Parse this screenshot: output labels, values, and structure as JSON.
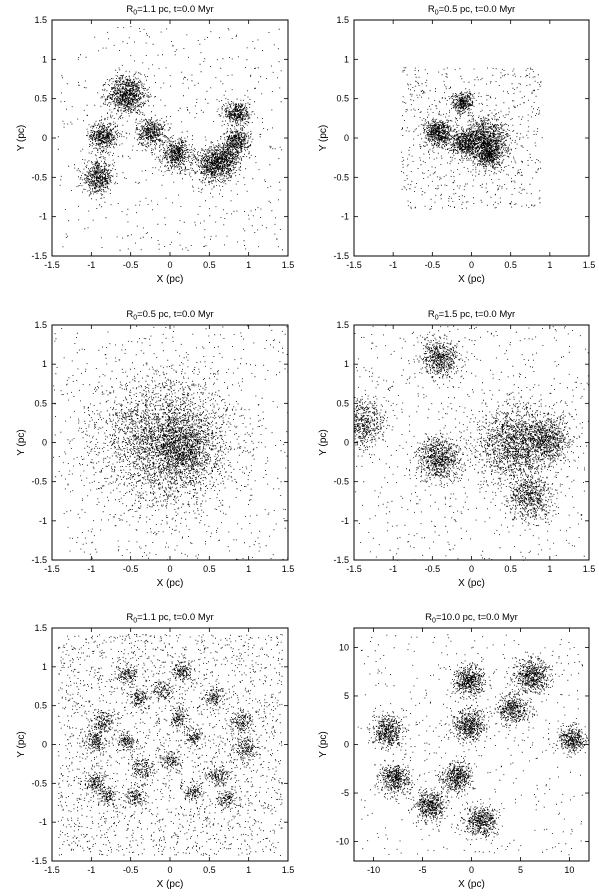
{
  "chart_data": [
    {
      "type": "scatter",
      "title_main": "R",
      "title_sub": "0",
      "title_rest": "=1.1 pc, t=0.0 Myr",
      "xlabel": "X (pc)",
      "ylabel": "Y (pc)",
      "xlim": [
        -1.5,
        1.5
      ],
      "ylim": [
        -1.5,
        1.5
      ],
      "xticks": [
        -1.5,
        -1,
        -0.5,
        0,
        0.5,
        1,
        1.5
      ],
      "xtick_labels": [
        "-1.5",
        "-1",
        "-0.5",
        "0",
        "0.5",
        "1",
        "1.5"
      ],
      "yticks": [
        -1.5,
        -1,
        -0.5,
        0,
        0.5,
        1,
        1.5
      ],
      "ytick_labels": [
        "-1.5",
        "-1",
        "-0.5",
        "0",
        "0.5",
        "1",
        "1.5"
      ],
      "grid": false,
      "marker_color": "#000000",
      "field_stars": 500,
      "field_spread": 0.95,
      "clumps": [
        {
          "x": -0.55,
          "y": 0.55,
          "r": 0.12,
          "n": 900
        },
        {
          "x": -0.85,
          "y": 0.03,
          "r": 0.09,
          "n": 500
        },
        {
          "x": -0.25,
          "y": 0.08,
          "r": 0.09,
          "n": 450
        },
        {
          "x": 0.08,
          "y": -0.2,
          "r": 0.1,
          "n": 550
        },
        {
          "x": -0.92,
          "y": -0.5,
          "r": 0.1,
          "n": 550
        },
        {
          "x": 0.55,
          "y": -0.35,
          "r": 0.11,
          "n": 650
        },
        {
          "x": 0.7,
          "y": -0.25,
          "r": 0.1,
          "n": 500
        },
        {
          "x": 0.85,
          "y": -0.03,
          "r": 0.08,
          "n": 400
        },
        {
          "x": 0.85,
          "y": 0.32,
          "r": 0.08,
          "n": 400
        }
      ]
    },
    {
      "type": "scatter",
      "title_main": "R",
      "title_sub": "0",
      "title_rest": "=0.5 pc, t=0.0 Myr",
      "xlabel": "X (pc)",
      "ylabel": "Y (pc)",
      "xlim": [
        -1.5,
        1.5
      ],
      "ylim": [
        -1.5,
        1.5
      ],
      "xticks": [
        -1.5,
        -1,
        -0.5,
        0,
        0.5,
        1,
        1.5
      ],
      "xtick_labels": [
        "-1.5",
        "-1",
        "-0.5",
        "0",
        "0.5",
        "1",
        "1.5"
      ],
      "yticks": [
        -1.5,
        -1,
        -0.5,
        0,
        0.5,
        1,
        1.5
      ],
      "ytick_labels": [
        "-1.5",
        "-1",
        "-0.5",
        "0",
        "0.5",
        "1",
        "1.5"
      ],
      "grid": false,
      "marker_color": "#000000",
      "field_stars": 700,
      "field_spread": 0.6,
      "clumps": [
        {
          "x": -0.12,
          "y": 0.45,
          "r": 0.07,
          "n": 350
        },
        {
          "x": -0.42,
          "y": 0.07,
          "r": 0.09,
          "n": 600
        },
        {
          "x": -0.1,
          "y": -0.07,
          "r": 0.08,
          "n": 450
        },
        {
          "x": 0.18,
          "y": -0.02,
          "r": 0.14,
          "n": 1100
        },
        {
          "x": 0.22,
          "y": -0.22,
          "r": 0.08,
          "n": 400
        }
      ]
    },
    {
      "type": "scatter",
      "title_main": "R",
      "title_sub": "0",
      "title_rest": "=0.5 pc, t=0.0 Myr",
      "xlabel": "X (pc)",
      "ylabel": "Y (pc)",
      "xlim": [
        -1.5,
        1.5
      ],
      "ylim": [
        -1.5,
        1.5
      ],
      "xticks": [
        -1.5,
        -1,
        -0.5,
        0,
        0.5,
        1,
        1.5
      ],
      "xtick_labels": [
        "-1.5",
        "-1",
        "-0.5",
        "0",
        "0.5",
        "1",
        "1.5"
      ],
      "yticks": [
        -1.5,
        -1,
        -0.5,
        0,
        0.5,
        1,
        1.5
      ],
      "ytick_labels": [
        "-1.5",
        "-1",
        "-0.5",
        "0",
        "0.5",
        "1",
        "1.5"
      ],
      "grid": false,
      "marker_color": "#000000",
      "field_stars": 600,
      "field_spread": 1.0,
      "clumps": [
        {
          "x": -0.05,
          "y": 0.02,
          "r": 0.42,
          "n": 3200
        },
        {
          "x": 0.15,
          "y": -0.08,
          "r": 0.2,
          "n": 900
        }
      ]
    },
    {
      "type": "scatter",
      "title_main": "R",
      "title_sub": "0",
      "title_rest": "=1.5 pc, t=0.0 Myr",
      "xlabel": "X (pc)",
      "ylabel": "Y (pc)",
      "xlim": [
        -1.5,
        1.5
      ],
      "ylim": [
        -1.5,
        1.5
      ],
      "xticks": [
        -1.5,
        -1,
        -0.5,
        0,
        0.5,
        1,
        1.5
      ],
      "xtick_labels": [
        "-1.5",
        "-1",
        "-0.5",
        "0",
        "0.5",
        "1",
        "1.5"
      ],
      "yticks": [
        -1.5,
        -1,
        -0.5,
        0,
        0.5,
        1,
        1.5
      ],
      "ytick_labels": [
        "-1.5",
        "-1",
        "-0.5",
        "0",
        "0.5",
        "1",
        "1.5"
      ],
      "grid": false,
      "marker_color": "#000000",
      "field_stars": 700,
      "field_spread": 1.0,
      "clumps": [
        {
          "x": -0.4,
          "y": 1.08,
          "r": 0.12,
          "n": 600
        },
        {
          "x": -1.4,
          "y": 0.25,
          "r": 0.15,
          "n": 600
        },
        {
          "x": -0.42,
          "y": -0.2,
          "r": 0.14,
          "n": 800
        },
        {
          "x": 0.55,
          "y": -0.02,
          "r": 0.25,
          "n": 1600
        },
        {
          "x": 0.95,
          "y": 0.05,
          "r": 0.15,
          "n": 700
        },
        {
          "x": 0.75,
          "y": -0.72,
          "r": 0.14,
          "n": 600
        }
      ]
    },
    {
      "type": "scatter",
      "title_main": "R",
      "title_sub": "0",
      "title_rest": "=1.1 pc, t=0.0 Myr",
      "xlabel": "X (pc)",
      "ylabel": "Y (pc)",
      "xlim": [
        -1.5,
        1.5
      ],
      "ylim": [
        -1.5,
        1.5
      ],
      "xticks": [
        -1.5,
        -1,
        -0.5,
        0,
        0.5,
        1,
        1.5
      ],
      "xtick_labels": [
        "-1.5",
        "-1",
        "-0.5",
        "0",
        "0.5",
        "1",
        "1.5"
      ],
      "yticks": [
        -1.5,
        -1,
        -0.5,
        0,
        0.5,
        1,
        1.5
      ],
      "ytick_labels": [
        "-1.5",
        "-1",
        "-0.5",
        "0",
        "0.5",
        "1",
        "1.5"
      ],
      "grid": false,
      "marker_color": "#000000",
      "field_stars": 2400,
      "field_spread": 0.95,
      "clumps": [
        {
          "x": 0.15,
          "y": 0.95,
          "r": 0.07,
          "n": 160
        },
        {
          "x": -0.55,
          "y": 0.9,
          "r": 0.07,
          "n": 160
        },
        {
          "x": -0.4,
          "y": 0.6,
          "r": 0.06,
          "n": 130
        },
        {
          "x": -0.1,
          "y": 0.7,
          "r": 0.06,
          "n": 130
        },
        {
          "x": 0.55,
          "y": 0.6,
          "r": 0.06,
          "n": 130
        },
        {
          "x": -0.85,
          "y": 0.3,
          "r": 0.07,
          "n": 160
        },
        {
          "x": 0.1,
          "y": 0.35,
          "r": 0.06,
          "n": 130
        },
        {
          "x": 0.9,
          "y": 0.3,
          "r": 0.07,
          "n": 160
        },
        {
          "x": -0.95,
          "y": 0.05,
          "r": 0.08,
          "n": 200
        },
        {
          "x": -0.55,
          "y": 0.05,
          "r": 0.06,
          "n": 130
        },
        {
          "x": 0.3,
          "y": 0.1,
          "r": 0.06,
          "n": 120
        },
        {
          "x": 0.95,
          "y": -0.05,
          "r": 0.08,
          "n": 200
        },
        {
          "x": -0.35,
          "y": -0.3,
          "r": 0.07,
          "n": 160
        },
        {
          "x": 0.0,
          "y": -0.2,
          "r": 0.06,
          "n": 130
        },
        {
          "x": 0.6,
          "y": -0.4,
          "r": 0.07,
          "n": 160
        },
        {
          "x": -0.95,
          "y": -0.5,
          "r": 0.07,
          "n": 160
        },
        {
          "x": -0.8,
          "y": -0.65,
          "r": 0.06,
          "n": 130
        },
        {
          "x": -0.45,
          "y": -0.65,
          "r": 0.06,
          "n": 130
        },
        {
          "x": 0.3,
          "y": -0.6,
          "r": 0.06,
          "n": 120
        },
        {
          "x": 0.7,
          "y": -0.7,
          "r": 0.06,
          "n": 120
        }
      ]
    },
    {
      "type": "scatter",
      "title_main": "R",
      "title_sub": "0",
      "title_rest": "=10.0 pc, t=0.0 Myr",
      "xlabel": "X (pc)",
      "ylabel": "Y (pc)",
      "xlim": [
        -12,
        12
      ],
      "ylim": [
        -12,
        12
      ],
      "xticks": [
        -10,
        -5,
        0,
        5,
        10
      ],
      "xtick_labels": [
        "-10",
        "-5",
        "0",
        "5",
        "10"
      ],
      "yticks": [
        -10,
        -5,
        0,
        5,
        10
      ],
      "ytick_labels": [
        "-10",
        "-5",
        "0",
        "5",
        "10"
      ],
      "grid": false,
      "marker_color": "#000000",
      "field_stars": 450,
      "field_spread": 0.95,
      "clumps": [
        {
          "x": -0.3,
          "y": 6.6,
          "r": 0.8,
          "n": 550
        },
        {
          "x": 6.2,
          "y": 7.1,
          "r": 0.9,
          "n": 600
        },
        {
          "x": 4.2,
          "y": 3.7,
          "r": 0.8,
          "n": 450
        },
        {
          "x": -0.3,
          "y": 1.9,
          "r": 0.8,
          "n": 550
        },
        {
          "x": -8.5,
          "y": 1.3,
          "r": 0.8,
          "n": 500
        },
        {
          "x": 10.3,
          "y": 0.5,
          "r": 0.7,
          "n": 400
        },
        {
          "x": -7.8,
          "y": -3.5,
          "r": 0.8,
          "n": 500
        },
        {
          "x": -1.5,
          "y": -3.3,
          "r": 0.8,
          "n": 500
        },
        {
          "x": -4.3,
          "y": -6.3,
          "r": 0.8,
          "n": 500
        },
        {
          "x": 1.0,
          "y": -7.8,
          "r": 0.8,
          "n": 500
        }
      ]
    }
  ]
}
